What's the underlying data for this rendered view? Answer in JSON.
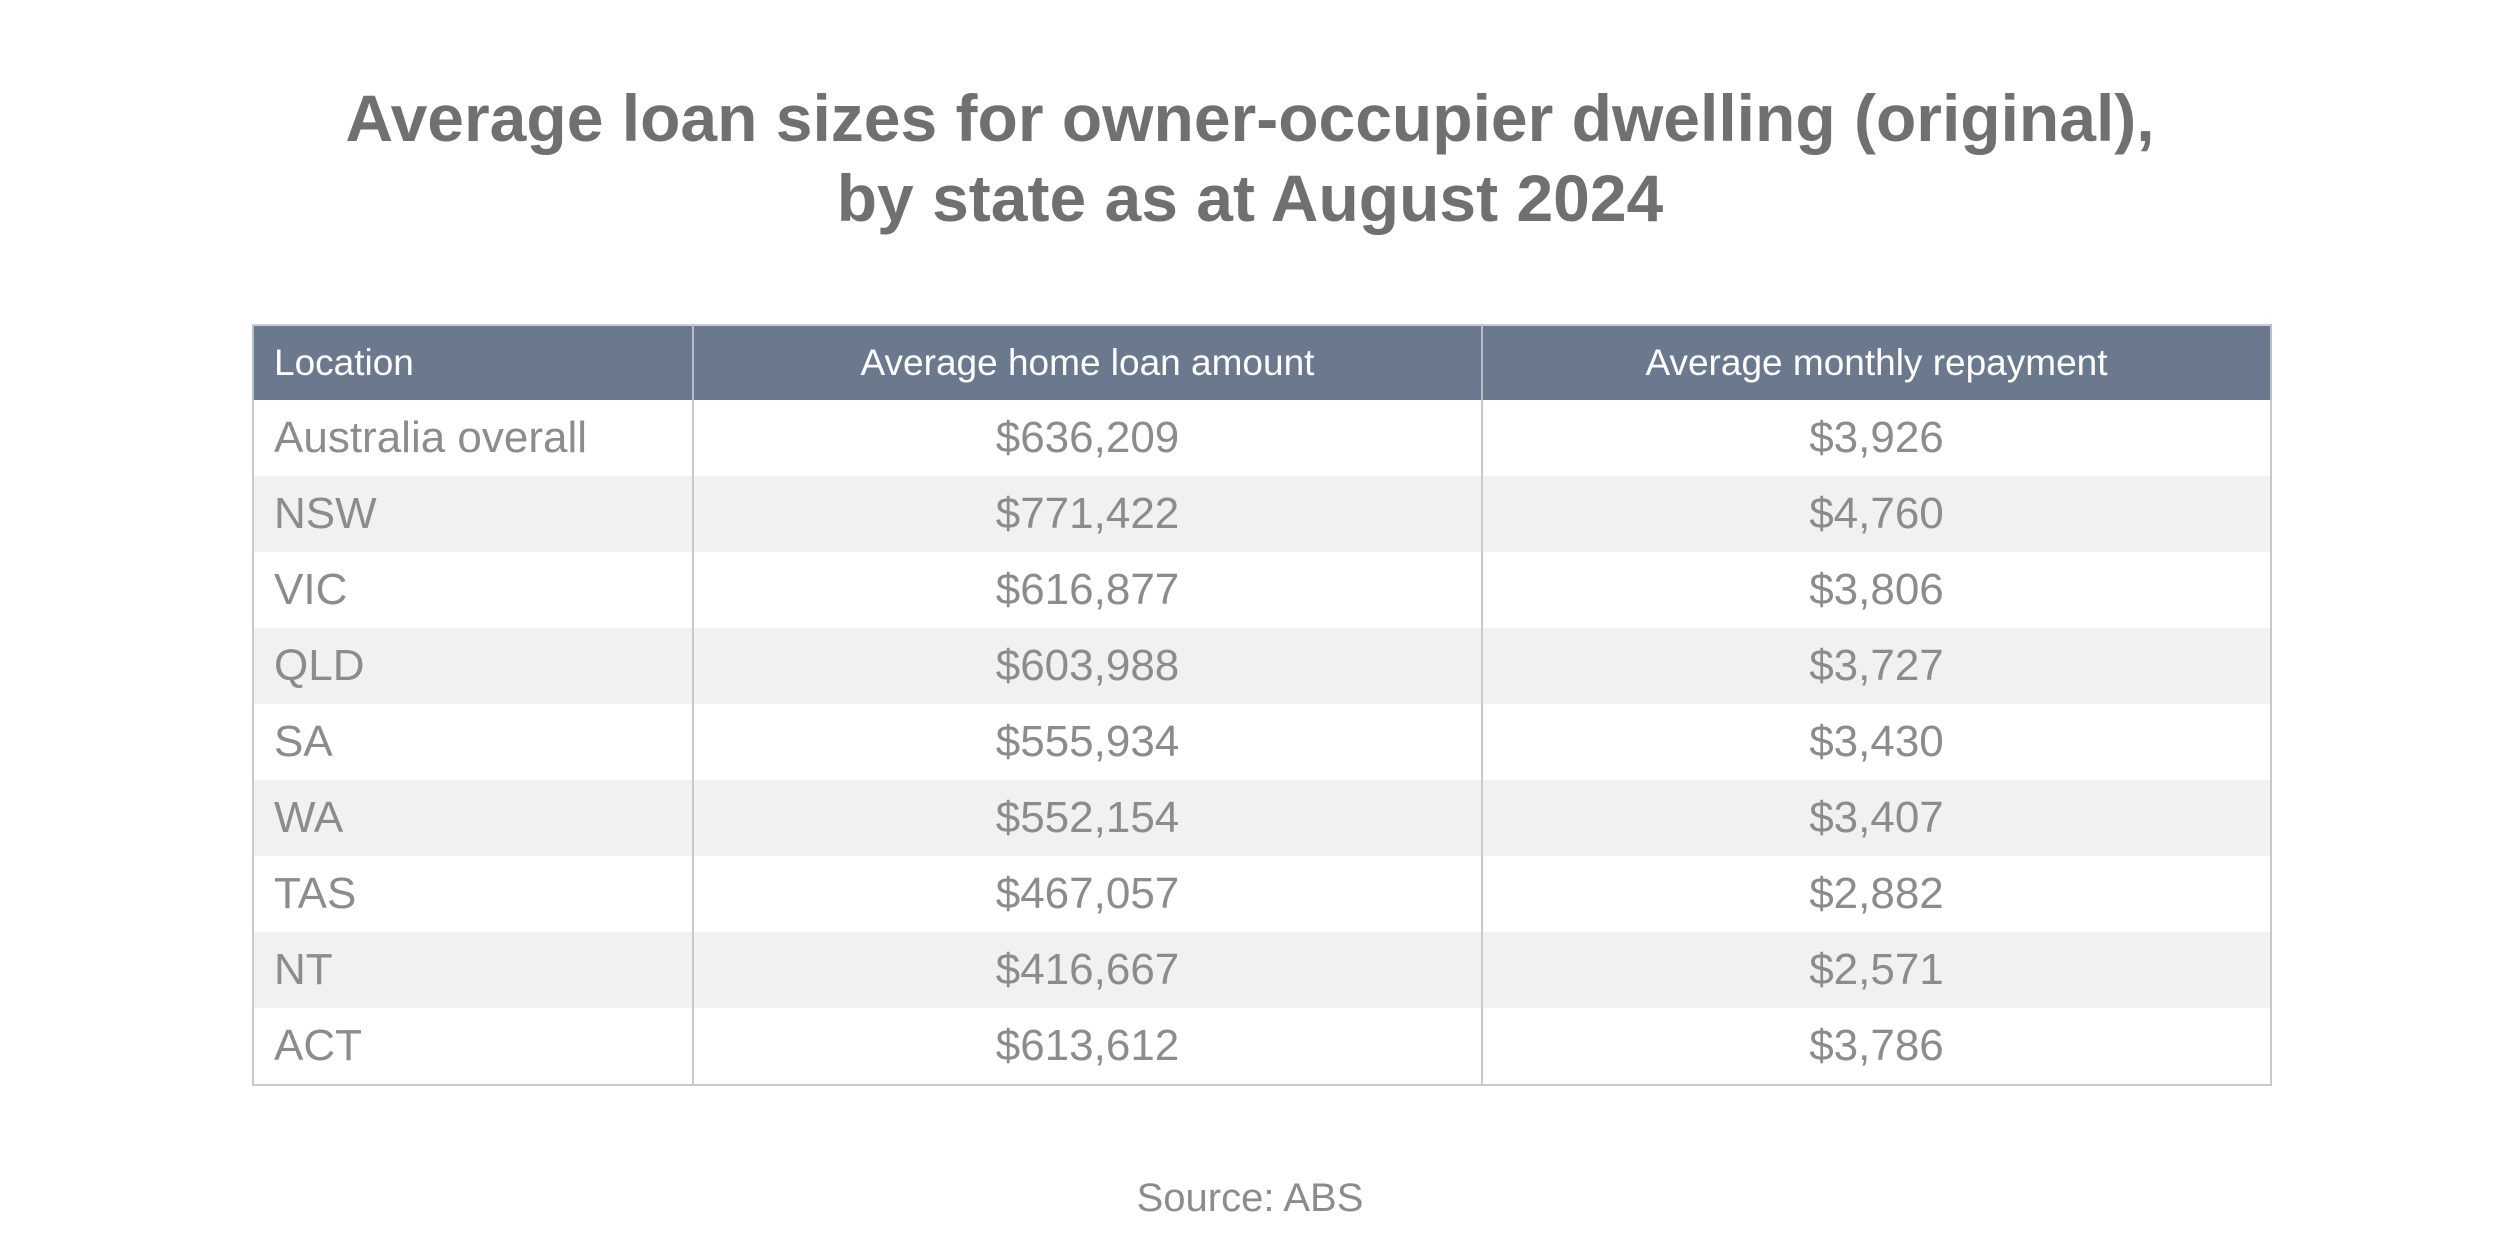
{
  "chart_data": {
    "type": "table",
    "title": {
      "line1": "Average loan sizes for owner-occupier dwelling (original),",
      "line2": "by state as at August 2024"
    },
    "columns": [
      "Location",
      "Average home loan amount",
      "Average monthly repayment"
    ],
    "rows": [
      [
        "Australia overall",
        "$636,209",
        "$3,926"
      ],
      [
        "NSW",
        "$771,422",
        "$4,760"
      ],
      [
        "VIC",
        "$616,877",
        "$3,806"
      ],
      [
        "QLD",
        "$603,988",
        "$3,727"
      ],
      [
        "SA",
        "$555,934",
        "$3,430"
      ],
      [
        "WA",
        "$552,154",
        "$3,407"
      ],
      [
        "TAS",
        "$467,057",
        "$2,882"
      ],
      [
        "NT",
        "$416,667",
        "$2,571"
      ],
      [
        "ACT",
        "$613,612",
        "$3,786"
      ]
    ],
    "source": "Source: ABS"
  },
  "colors": {
    "header_bg": "#6a798e",
    "header_text": "#ffffff",
    "title_text": "#707070",
    "cell_text": "#8c8c8c",
    "row_alt_bg": "#f0f1f0"
  }
}
